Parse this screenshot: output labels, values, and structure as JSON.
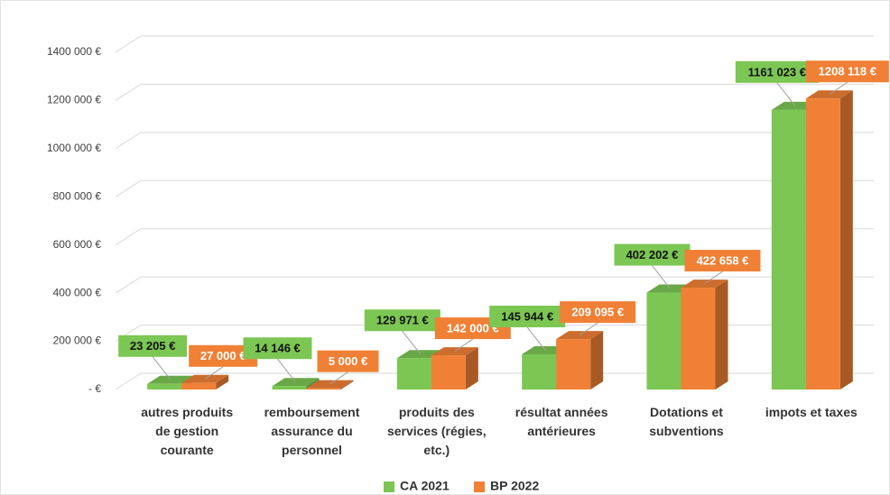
{
  "chart_data": {
    "type": "bar3d",
    "categories": [
      "autres produits de gestion courante",
      "remboursement assurance du personnel",
      "produits des services (régies, etc.)",
      "résultat années antérieures",
      "Dotations et subventions",
      "impots et taxes"
    ],
    "series": [
      {
        "name": "CA 2021",
        "color": "#7cc653",
        "values": [
          23205,
          14146,
          129971,
          145944,
          402202,
          1161023
        ],
        "value_labels": [
          "23 205 €",
          "14 146 €",
          "129 971 €",
          "145 944 €",
          "402 202 €",
          "1161 023 €"
        ]
      },
      {
        "name": "BP 2022",
        "color": "#f08035",
        "values": [
          27000,
          5000,
          142000,
          209095,
          422658,
          1208118
        ],
        "value_labels": [
          "27 000 €",
          "5 000 €",
          "142 000 €",
          "209 095 €",
          "422 658 €",
          "1208 118 €"
        ]
      }
    ],
    "ylim": [
      0,
      1400000
    ],
    "yticks": [
      {
        "value": 0,
        "label": "-  €"
      },
      {
        "value": 200000,
        "label": "200 000 €"
      },
      {
        "value": 400000,
        "label": "400 000 €"
      },
      {
        "value": 600000,
        "label": "600 000 €"
      },
      {
        "value": 800000,
        "label": "800 000 €"
      },
      {
        "value": 1000000,
        "label": "1000 000 €"
      },
      {
        "value": 1200000,
        "label": "1200 000 €"
      },
      {
        "value": 1400000,
        "label": "1400 000 €"
      }
    ],
    "grid": true,
    "legend": "bottom"
  }
}
